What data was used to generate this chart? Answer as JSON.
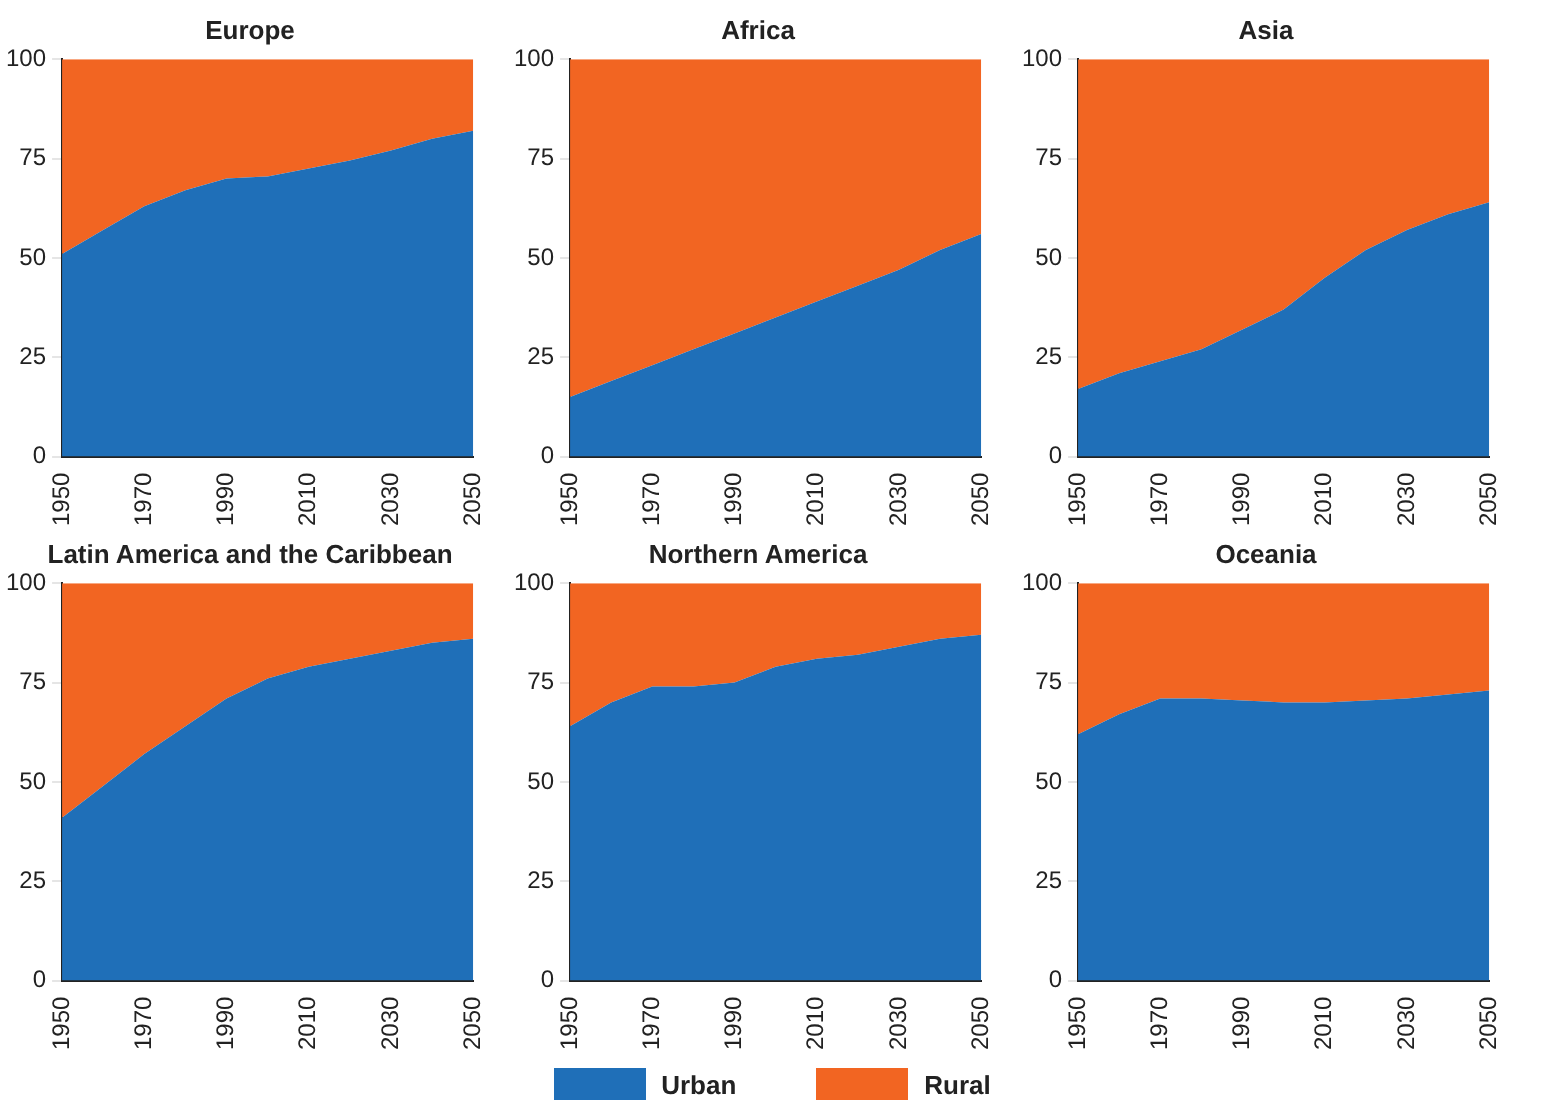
{
  "chart_data": [
    {
      "type": "area",
      "title": "Europe",
      "x": [
        1950,
        1960,
        1970,
        1980,
        1990,
        2000,
        2010,
        2020,
        2030,
        2040,
        2050
      ],
      "stacked": true,
      "xlim": [
        1950,
        2050
      ],
      "xticks": [
        1950,
        1970,
        1990,
        2010,
        2030,
        2050
      ],
      "ylim": [
        0,
        100
      ],
      "yticks": [
        0,
        25,
        50,
        75,
        100
      ],
      "legend": "bottom",
      "series": [
        {
          "name": "Urban",
          "color": "#1f6fb8",
          "values": [
            51,
            57,
            63,
            67,
            70,
            70.5,
            72.5,
            74.5,
            77,
            80,
            82
          ]
        },
        {
          "name": "Rural",
          "color": "#f26522",
          "values": [
            49,
            43,
            37,
            33,
            30,
            29.5,
            27.5,
            25.5,
            23,
            20,
            18
          ]
        }
      ]
    },
    {
      "type": "area",
      "title": "Africa",
      "x": [
        1950,
        1960,
        1970,
        1980,
        1990,
        2000,
        2010,
        2020,
        2030,
        2040,
        2050
      ],
      "stacked": true,
      "xlim": [
        1950,
        2050
      ],
      "xticks": [
        1950,
        1970,
        1990,
        2010,
        2030,
        2050
      ],
      "ylim": [
        0,
        100
      ],
      "yticks": [
        0,
        25,
        50,
        75,
        100
      ],
      "series": [
        {
          "color": "#1f6fb8",
          "values": [
            15,
            19,
            23,
            27,
            31,
            35,
            39,
            43,
            47,
            52,
            56
          ]
        },
        {
          "color": "#f26522",
          "values": [
            85,
            81,
            77,
            73,
            69,
            65,
            61,
            57,
            53,
            48,
            44
          ]
        }
      ]
    },
    {
      "type": "area",
      "title": "Asia",
      "x": [
        1950,
        1960,
        1970,
        1980,
        1990,
        2000,
        2010,
        2020,
        2030,
        2040,
        2050
      ],
      "stacked": true,
      "xlim": [
        1950,
        2050
      ],
      "xticks": [
        1950,
        1970,
        1990,
        2010,
        2030,
        2050
      ],
      "ylim": [
        0,
        100
      ],
      "yticks": [
        0,
        25,
        50,
        75,
        100
      ],
      "series": [
        {
          "color": "#1f6fb8",
          "values": [
            17,
            21,
            24,
            27,
            32,
            37,
            45,
            52,
            57,
            61,
            64
          ]
        },
        {
          "color": "#f26522",
          "values": [
            83,
            79,
            76,
            73,
            68,
            63,
            55,
            48,
            43,
            39,
            36
          ]
        }
      ]
    },
    {
      "type": "area",
      "title": "Latin America and the Caribbean",
      "x": [
        1950,
        1960,
        1970,
        1980,
        1990,
        2000,
        2010,
        2020,
        2030,
        2040,
        2050
      ],
      "stacked": true,
      "xlim": [
        1950,
        2050
      ],
      "xticks": [
        1950,
        1970,
        1990,
        2010,
        2030,
        2050
      ],
      "ylim": [
        0,
        100
      ],
      "yticks": [
        0,
        25,
        50,
        75,
        100
      ],
      "series": [
        {
          "color": "#1f6fb8",
          "values": [
            41,
            49,
            57,
            64,
            71,
            76,
            79,
            81,
            83,
            85,
            86
          ]
        },
        {
          "color": "#f26522",
          "values": [
            59,
            51,
            43,
            36,
            29,
            24,
            21,
            19,
            17,
            15,
            14
          ]
        }
      ]
    },
    {
      "type": "area",
      "title": "Northern America",
      "x": [
        1950,
        1960,
        1970,
        1980,
        1990,
        2000,
        2010,
        2020,
        2030,
        2040,
        2050
      ],
      "stacked": true,
      "xlim": [
        1950,
        2050
      ],
      "xticks": [
        1950,
        1970,
        1990,
        2010,
        2030,
        2050
      ],
      "ylim": [
        0,
        100
      ],
      "yticks": [
        0,
        25,
        50,
        75,
        100
      ],
      "series": [
        {
          "color": "#1f6fb8",
          "values": [
            64,
            70,
            74,
            74,
            75,
            79,
            81,
            82,
            84,
            86,
            87
          ]
        },
        {
          "color": "#f26522",
          "values": [
            36,
            30,
            26,
            26,
            25,
            21,
            19,
            18,
            16,
            14,
            13
          ]
        }
      ]
    },
    {
      "type": "area",
      "title": "Oceania",
      "x": [
        1950,
        1960,
        1970,
        1980,
        1990,
        2000,
        2010,
        2020,
        2030,
        2040,
        2050
      ],
      "stacked": true,
      "xlim": [
        1950,
        2050
      ],
      "xticks": [
        1950,
        1970,
        1990,
        2010,
        2030,
        2050
      ],
      "ylim": [
        0,
        100
      ],
      "yticks": [
        0,
        25,
        50,
        75,
        100
      ],
      "series": [
        {
          "color": "#1f6fb8",
          "values": [
            62,
            67,
            71,
            71,
            70.5,
            70,
            70,
            70.5,
            71,
            72,
            73
          ]
        },
        {
          "color": "#f26522",
          "values": [
            38,
            33,
            29,
            29,
            29.5,
            30,
            30,
            29.5,
            29,
            28,
            27
          ]
        }
      ]
    }
  ]
}
